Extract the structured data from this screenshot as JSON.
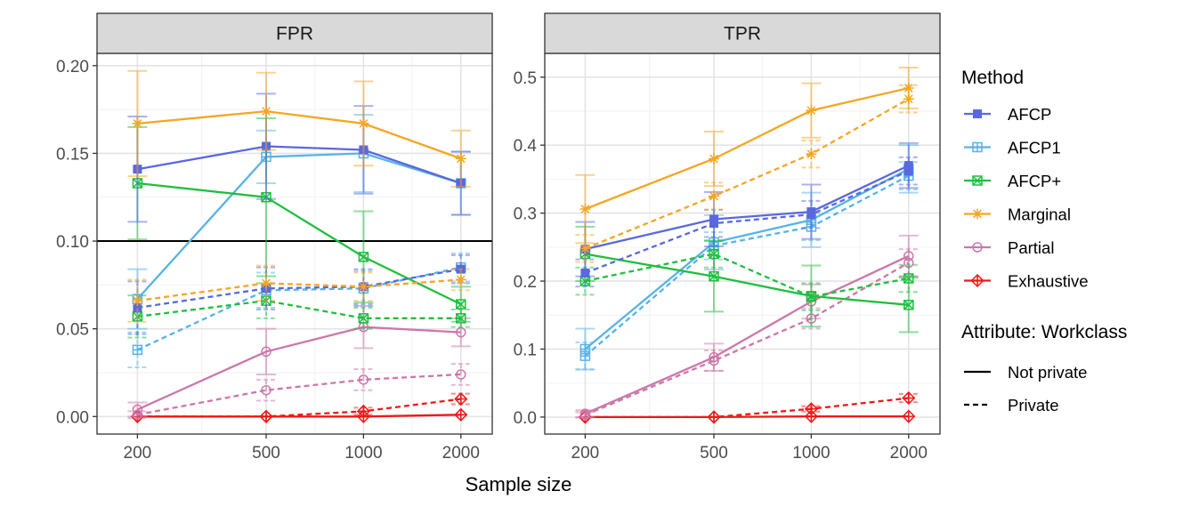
{
  "chart_data": {
    "type": "line",
    "x_title": "Sample size",
    "x_values": [
      200,
      500,
      1000,
      2000
    ],
    "x_tick_labels": [
      "200",
      "500",
      "1000",
      "2000"
    ],
    "x_scale": "log10",
    "x_limits": [
      150,
      2500
    ],
    "reference_line": {
      "panel": "FPR",
      "y": 0.1
    },
    "legend": {
      "method_title": "Method",
      "methods": [
        {
          "name": "AFCP",
          "color": "#5a68e0",
          "marker": "square-filled"
        },
        {
          "name": "AFCP1",
          "color": "#57b3e6",
          "marker": "square-plus"
        },
        {
          "name": "AFCP+",
          "color": "#1fbf3f",
          "marker": "square-x"
        },
        {
          "name": "Marginal",
          "color": "#f5a623",
          "marker": "asterisk"
        },
        {
          "name": "Partial",
          "color": "#cc77aa",
          "marker": "circle"
        },
        {
          "name": "Exhaustive",
          "color": "#f01818",
          "marker": "diamond-plus"
        }
      ],
      "linetype_title": "Attribute: Workclass",
      "linetypes": [
        {
          "name": "Not private",
          "style": "solid"
        },
        {
          "name": "Private",
          "style": "dashed"
        }
      ]
    },
    "panels": [
      {
        "title": "FPR",
        "ylim": [
          -0.01,
          0.207
        ],
        "y_ticks": [
          0.0,
          0.05,
          0.1,
          0.15,
          0.2
        ],
        "y_tick_labels": [
          "0.00",
          "0.05",
          "0.10",
          "0.15",
          "0.20"
        ],
        "series": [
          {
            "method": "AFCP",
            "linetype": "Not private",
            "values": [
              0.141,
              0.154,
              0.152,
              0.133
            ],
            "err": [
              0.03,
              0.03,
              0.025,
              0.018
            ]
          },
          {
            "method": "AFCP",
            "linetype": "Private",
            "values": [
              0.062,
              0.073,
              0.074,
              0.084
            ],
            "err": [
              0.015,
              0.012,
              0.01,
              0.008
            ]
          },
          {
            "method": "AFCP1",
            "linetype": "Not private",
            "values": [
              0.067,
              0.148,
              0.15,
              0.133
            ],
            "err": [
              0.017,
              0.015,
              0.022,
              0.018
            ]
          },
          {
            "method": "AFCP1",
            "linetype": "Private",
            "values": [
              0.038,
              0.072,
              0.073,
              0.085
            ],
            "err": [
              0.01,
              0.01,
              0.01,
              0.008
            ]
          },
          {
            "method": "AFCP+",
            "linetype": "Not private",
            "values": [
              0.133,
              0.125,
              0.091,
              0.064
            ],
            "err": [
              0.032,
              0.045,
              0.026,
              0.01
            ]
          },
          {
            "method": "AFCP+",
            "linetype": "Private",
            "values": [
              0.057,
              0.066,
              0.056,
              0.056
            ],
            "err": [
              0.012,
              0.01,
              0.006,
              0.005
            ]
          },
          {
            "method": "Marginal",
            "linetype": "Not private",
            "values": [
              0.167,
              0.174,
              0.167,
              0.147
            ],
            "err": [
              0.03,
              0.022,
              0.024,
              0.016
            ]
          },
          {
            "method": "Marginal",
            "linetype": "Private",
            "values": [
              0.066,
              0.076,
              0.074,
              0.078
            ],
            "err": [
              0.012,
              0.01,
              0.008,
              0.006
            ]
          },
          {
            "method": "Partial",
            "linetype": "Not private",
            "values": [
              0.004,
              0.037,
              0.051,
              0.048
            ],
            "err": [
              0.004,
              0.013,
              0.012,
              0.008
            ]
          },
          {
            "method": "Partial",
            "linetype": "Private",
            "values": [
              0.001,
              0.015,
              0.021,
              0.024
            ],
            "err": [
              0.002,
              0.006,
              0.006,
              0.006
            ]
          },
          {
            "method": "Exhaustive",
            "linetype": "Not private",
            "values": [
              0.0,
              0.0,
              0.0,
              0.001
            ],
            "err": [
              0,
              0,
              0,
              0
            ]
          },
          {
            "method": "Exhaustive",
            "linetype": "Private",
            "values": [
              0.0,
              0.0,
              0.003,
              0.01
            ],
            "err": [
              0,
              0,
              0.002,
              0.003
            ]
          }
        ]
      },
      {
        "title": "TPR",
        "ylim": [
          -0.025,
          0.535
        ],
        "y_ticks": [
          0.0,
          0.1,
          0.2,
          0.3,
          0.4,
          0.5
        ],
        "y_tick_labels": [
          "0.0",
          "0.1",
          "0.2",
          "0.3",
          "0.4",
          "0.5"
        ],
        "series": [
          {
            "method": "AFCP",
            "linetype": "Not private",
            "values": [
              0.247,
              0.291,
              0.302,
              0.37
            ],
            "err": [
              0.04,
              0.04,
              0.04,
              0.033
            ]
          },
          {
            "method": "AFCP",
            "linetype": "Private",
            "values": [
              0.212,
              0.285,
              0.298,
              0.362
            ],
            "err": [
              0.02,
              0.02,
              0.02,
              0.02
            ]
          },
          {
            "method": "AFCP1",
            "linetype": "Not private",
            "values": [
              0.1,
              0.257,
              0.29,
              0.365
            ],
            "err": [
              0.03,
              0.04,
              0.04,
              0.035
            ]
          },
          {
            "method": "AFCP1",
            "linetype": "Private",
            "values": [
              0.09,
              0.252,
              0.28,
              0.355
            ],
            "err": [
              0.02,
              0.02,
              0.02,
              0.02
            ]
          },
          {
            "method": "AFCP+",
            "linetype": "Not private",
            "values": [
              0.24,
              0.207,
              0.178,
              0.165
            ],
            "err": [
              0.04,
              0.052,
              0.045,
              0.04
            ]
          },
          {
            "method": "AFCP+",
            "linetype": "Private",
            "values": [
              0.2,
              0.24,
              0.177,
              0.204
            ],
            "err": [
              0.02,
              0.02,
              0.02,
              0.02
            ]
          },
          {
            "method": "Marginal",
            "linetype": "Not private",
            "values": [
              0.306,
              0.38,
              0.451,
              0.484
            ],
            "err": [
              0.05,
              0.04,
              0.04,
              0.03
            ]
          },
          {
            "method": "Marginal",
            "linetype": "Private",
            "values": [
              0.248,
              0.325,
              0.387,
              0.468
            ],
            "err": [
              0.02,
              0.02,
              0.02,
              0.02
            ]
          },
          {
            "method": "Partial",
            "linetype": "Not private",
            "values": [
              0.005,
              0.088,
              0.17,
              0.237
            ],
            "err": [
              0.005,
              0.02,
              0.025,
              0.03
            ]
          },
          {
            "method": "Partial",
            "linetype": "Private",
            "values": [
              0.003,
              0.083,
              0.145,
              0.227
            ],
            "err": [
              0.004,
              0.015,
              0.015,
              0.02
            ]
          },
          {
            "method": "Exhaustive",
            "linetype": "Not private",
            "values": [
              0.0,
              0.0,
              0.001,
              0.001
            ],
            "err": [
              0,
              0,
              0,
              0
            ]
          },
          {
            "method": "Exhaustive",
            "linetype": "Private",
            "values": [
              0.0,
              0.0,
              0.012,
              0.028
            ],
            "err": [
              0,
              0,
              0.004,
              0.006
            ]
          }
        ]
      }
    ]
  }
}
